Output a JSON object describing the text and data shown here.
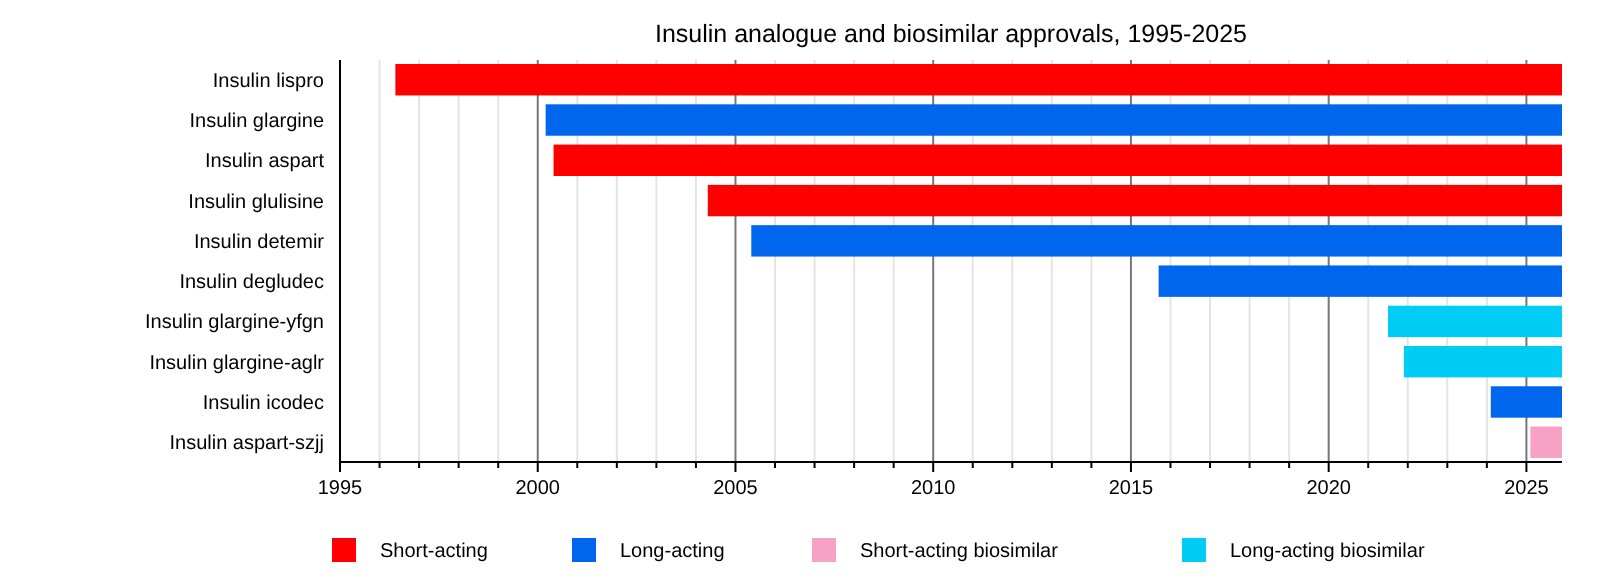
{
  "chart_data": {
    "type": "bar",
    "orientation": "horizontal",
    "title": "Insulin analogue and biosimilar approvals, 1995-2025",
    "categories": [
      "Insulin lispro",
      "Insulin glargine",
      "Insulin aspart",
      "Insulin glulisine",
      "Insulin detemir",
      "Insulin degludec",
      "Insulin glargine-yfgn",
      "Insulin glargine-aglr",
      "Insulin icodec",
      "Insulin aspart-szjj"
    ],
    "series": [
      {
        "name": "Short-acting",
        "color": "#ff0000",
        "base": [
          1996.4,
          null,
          2000.4,
          2004.3,
          null,
          null,
          null,
          null,
          null,
          null
        ],
        "values": [
          29.5,
          null,
          25.5,
          21.6,
          null,
          null,
          null,
          null,
          null,
          null
        ]
      },
      {
        "name": "Long-acting",
        "color": "#0066ee",
        "base": [
          null,
          2000.2,
          null,
          null,
          2005.4,
          2015.7,
          null,
          null,
          2024.1,
          null
        ],
        "values": [
          null,
          25.7,
          null,
          null,
          20.5,
          10.2,
          null,
          null,
          1.8,
          null
        ]
      },
      {
        "name": "Short-acting biosimilar",
        "color": "#f7a1c4",
        "base": [
          null,
          null,
          null,
          null,
          null,
          null,
          null,
          null,
          null,
          2025.1
        ],
        "values": [
          null,
          null,
          null,
          null,
          null,
          null,
          null,
          null,
          null,
          0.8
        ]
      },
      {
        "name": "Long-acting biosimilar",
        "color": "#00ccf5",
        "base": [
          null,
          null,
          null,
          null,
          null,
          null,
          2021.5,
          2021.9,
          null,
          null
        ],
        "values": [
          null,
          null,
          null,
          null,
          null,
          null,
          4.4,
          4.0,
          null,
          null
        ]
      }
    ],
    "xlim": [
      1995,
      2025.9
    ],
    "xticks": [
      1995,
      {
        "value": 1996,
        "label": null
      },
      {
        "value": 1997,
        "label": null
      },
      {
        "value": 1998,
        "label": null
      },
      {
        "value": 1999,
        "label": null
      },
      2000,
      {
        "value": 2001,
        "label": null
      },
      {
        "value": 2002,
        "label": null
      },
      {
        "value": 2003,
        "label": null
      },
      {
        "value": 2004,
        "label": null
      },
      2005,
      {
        "value": 2006,
        "label": null
      },
      {
        "value": 2007,
        "label": null
      },
      {
        "value": 2008,
        "label": null
      },
      {
        "value": 2009,
        "label": null
      },
      2010,
      {
        "value": 2011,
        "label": null
      },
      {
        "value": 2012,
        "label": null
      },
      {
        "value": 2013,
        "label": null
      },
      {
        "value": 2014,
        "label": null
      },
      2015,
      {
        "value": 2016,
        "label": null
      },
      {
        "value": 2017,
        "label": null
      },
      {
        "value": 2018,
        "label": null
      },
      {
        "value": 2019,
        "label": null
      },
      2020,
      {
        "value": 2021,
        "label": null
      },
      {
        "value": 2022,
        "label": null
      },
      {
        "value": 2023,
        "label": null
      },
      {
        "value": 2024,
        "label": null
      },
      2025
    ],
    "grid": "x",
    "legend": "bottom"
  }
}
